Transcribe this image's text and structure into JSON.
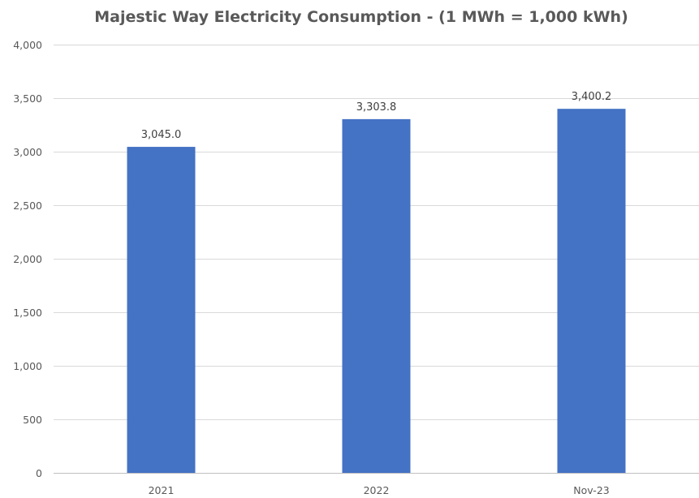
{
  "chart_data": {
    "type": "bar",
    "title": "Majestic Way Electricity Consumption - (1 MWh = 1,000 kWh)",
    "categories": [
      "2021",
      "2022",
      "Nov-23"
    ],
    "series": [
      {
        "values": [
          3045.0,
          3303.8,
          3400.2
        ],
        "data_labels": [
          "3,045.0",
          "3,303.8",
          "3,400.2"
        ],
        "color": "#4472c4"
      }
    ],
    "ylim": [
      0,
      4000
    ],
    "yticks": [
      0,
      500,
      1000,
      1500,
      2000,
      2500,
      3000,
      3500,
      4000
    ],
    "ytick_labels": [
      "0",
      "500",
      "1,000",
      "1,500",
      "2,000",
      "2,500",
      "3,000",
      "3,500",
      "4,000"
    ],
    "grid": true,
    "legend": "none",
    "xlabel": "",
    "ylabel": ""
  },
  "colors": {
    "bar": "#4472c4",
    "gridline": "#d9d9d9",
    "text": "#595959"
  }
}
